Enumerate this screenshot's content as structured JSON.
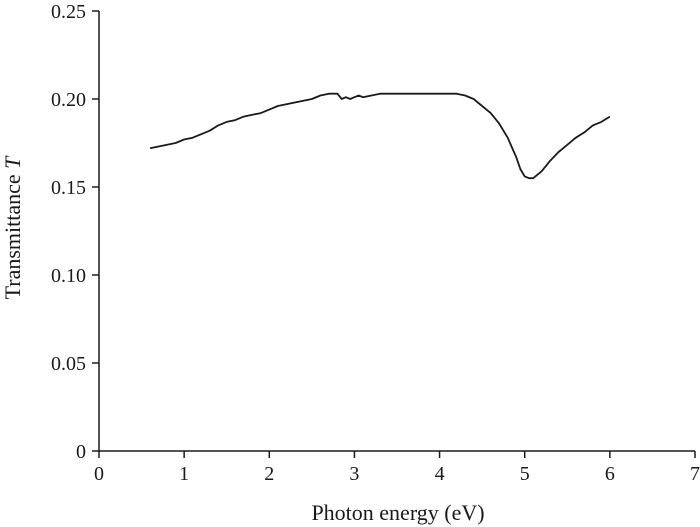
{
  "chart_data": {
    "type": "line",
    "title": "",
    "xlabel": "Photon energy (eV)",
    "ylabel_prefix": "Transmittance ",
    "ylabel_symbol": "T",
    "xlim": [
      0,
      7
    ],
    "ylim": [
      0,
      0.25
    ],
    "x_ticks": [
      "0",
      "1",
      "2",
      "3",
      "4",
      "5",
      "6",
      "7"
    ],
    "y_ticks": [
      "0",
      "0.05",
      "0.10",
      "0.15",
      "0.20",
      "0.25"
    ],
    "grid": false,
    "legend": "none",
    "line_color": "#1a1a1a",
    "series": [
      {
        "x": [
          0.6,
          0.8,
          0.9,
          1.0,
          1.1,
          1.2,
          1.3,
          1.4,
          1.5,
          1.6,
          1.7,
          1.8,
          1.9,
          2.0,
          2.1,
          2.2,
          2.3,
          2.4,
          2.5,
          2.6,
          2.7,
          2.8,
          2.85,
          2.9,
          2.95,
          3.0,
          3.05,
          3.1,
          3.2,
          3.3,
          3.5,
          3.8,
          4.0,
          4.2,
          4.3,
          4.4,
          4.5,
          4.6,
          4.7,
          4.8,
          4.9,
          4.95,
          5.0,
          5.05,
          5.1,
          5.2,
          5.3,
          5.4,
          5.5,
          5.6,
          5.7,
          5.8,
          5.9,
          6.0
        ],
        "y": [
          0.172,
          0.174,
          0.175,
          0.177,
          0.178,
          0.18,
          0.182,
          0.185,
          0.187,
          0.188,
          0.19,
          0.191,
          0.192,
          0.194,
          0.196,
          0.197,
          0.198,
          0.199,
          0.2,
          0.202,
          0.203,
          0.203,
          0.2,
          0.201,
          0.2,
          0.201,
          0.202,
          0.201,
          0.202,
          0.203,
          0.203,
          0.203,
          0.203,
          0.203,
          0.202,
          0.2,
          0.196,
          0.192,
          0.186,
          0.178,
          0.167,
          0.16,
          0.156,
          0.155,
          0.155,
          0.159,
          0.165,
          0.17,
          0.174,
          0.178,
          0.181,
          0.185,
          0.187,
          0.19
        ]
      }
    ]
  }
}
